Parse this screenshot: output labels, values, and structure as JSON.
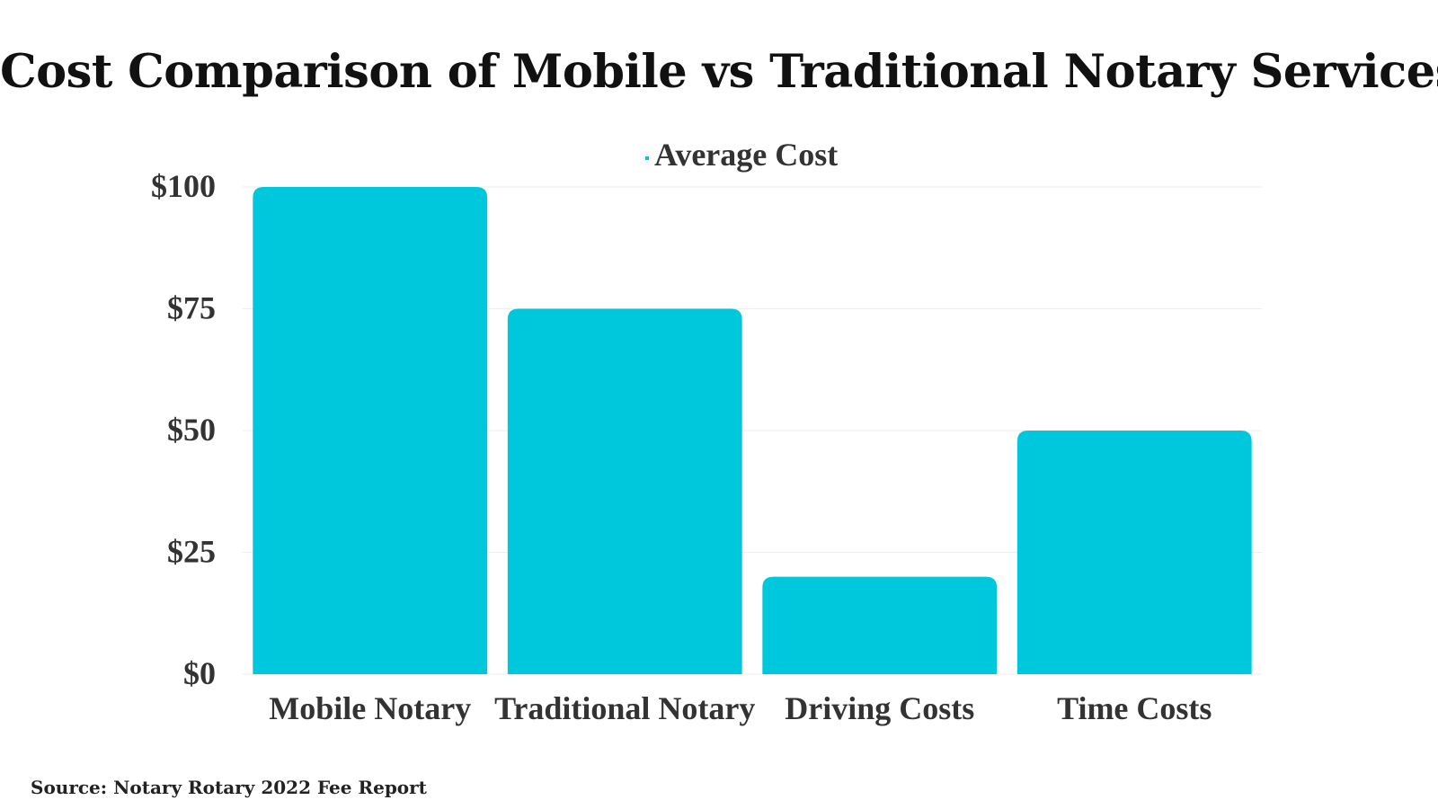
{
  "chart_data": {
    "type": "bar",
    "title": "Cost Comparison of Mobile vs Traditional Notary Services",
    "categories": [
      "Mobile Notary",
      "Traditional Notary",
      "Driving Costs",
      "Time Costs"
    ],
    "series": [
      {
        "name": "Average Cost",
        "values": [
          100,
          75,
          20,
          50
        ],
        "color": "#00c8dc"
      }
    ],
    "y_ticks": [
      0,
      25,
      50,
      75,
      100
    ],
    "y_tick_labels": [
      "$0",
      "$25",
      "$50",
      "$75",
      "$100"
    ],
    "ylim": [
      0,
      100
    ],
    "xlabel": "",
    "ylabel": "",
    "grid": true,
    "legend_position": "top-center",
    "source": "Source: Notary Rotary 2022 Fee Report"
  },
  "colors": {
    "bar": "#00c8dc",
    "grid": "#eeeeee",
    "axis_text": "#333333",
    "title": "#111111"
  }
}
